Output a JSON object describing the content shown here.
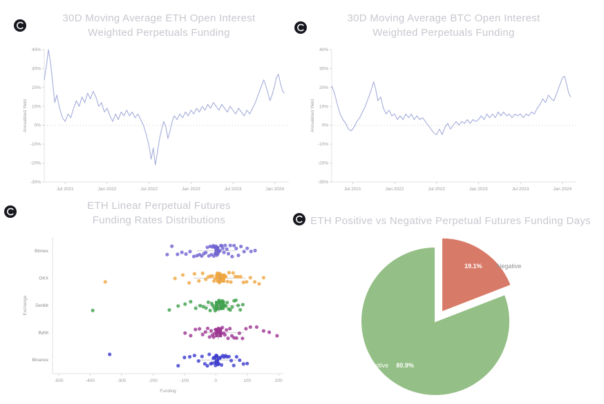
{
  "brand": {
    "logo_icon": "brand-logo-icon",
    "logo_bg": "#17171f",
    "logo_fg": "#ffffff"
  },
  "colors": {
    "title": "#c7c8cf",
    "tick": "#9b9ba1",
    "line_series": "#a5adda",
    "axis": "#e2e2e6",
    "zero_line": "#c8c8c8",
    "pie_positive": "#94bf86",
    "pie_negative": "#d87a68"
  },
  "chart_data": [
    {
      "type": "line",
      "title": "30D Moving Average ETH Open Interest\nWeighted Perpetuals Funding",
      "ylabel": "Annualized Yield",
      "ylim": [
        -30,
        40
      ],
      "xlim": [
        0,
        35
      ],
      "grid": false,
      "zero_line": true,
      "line_color": "#a5adda",
      "yticks": [
        {
          "v": 40,
          "label": "40%"
        },
        {
          "v": 30,
          "label": "30%"
        },
        {
          "v": 20,
          "label": "20%"
        },
        {
          "v": 10,
          "label": "10%"
        },
        {
          "v": 0,
          "label": "0%"
        },
        {
          "v": -10,
          "label": "-10%"
        },
        {
          "v": -20,
          "label": "-20%"
        },
        {
          "v": -30,
          "label": "-30%"
        }
      ],
      "xticks": [
        {
          "t": 3,
          "label": "Jul 2021"
        },
        {
          "t": 9,
          "label": "Jan 2022"
        },
        {
          "t": 15,
          "label": "Jul 2022"
        },
        {
          "t": 21,
          "label": "Jan 2023"
        },
        {
          "t": 27,
          "label": "Jul 2023"
        },
        {
          "t": 33,
          "label": "Jan 2024"
        }
      ],
      "points": [
        [
          0,
          24
        ],
        [
          0.3,
          31
        ],
        [
          0.6,
          40
        ],
        [
          0.9,
          33
        ],
        [
          1.2,
          23
        ],
        [
          1.5,
          12
        ],
        [
          1.8,
          16
        ],
        [
          2.2,
          9
        ],
        [
          2.6,
          4
        ],
        [
          3,
          2
        ],
        [
          3.4,
          6
        ],
        [
          3.8,
          4
        ],
        [
          4.2,
          9
        ],
        [
          4.6,
          13
        ],
        [
          5,
          10
        ],
        [
          5.4,
          15
        ],
        [
          5.8,
          12
        ],
        [
          6.2,
          17
        ],
        [
          6.6,
          14
        ],
        [
          7,
          18
        ],
        [
          7.4,
          15
        ],
        [
          7.8,
          10
        ],
        [
          8.2,
          12
        ],
        [
          8.6,
          7
        ],
        [
          9,
          9
        ],
        [
          9.4,
          5
        ],
        [
          9.8,
          2
        ],
        [
          10.2,
          6
        ],
        [
          10.6,
          3
        ],
        [
          11,
          7
        ],
        [
          11.4,
          5
        ],
        [
          11.8,
          8
        ],
        [
          12.2,
          5
        ],
        [
          12.6,
          7
        ],
        [
          13,
          4
        ],
        [
          13.4,
          6
        ],
        [
          13.8,
          3
        ],
        [
          14.2,
          0
        ],
        [
          14.6,
          -5
        ],
        [
          15,
          -11
        ],
        [
          15.3,
          -18
        ],
        [
          15.6,
          -12
        ],
        [
          15.9,
          -21
        ],
        [
          16.2,
          -14
        ],
        [
          16.5,
          -7
        ],
        [
          16.8,
          -2
        ],
        [
          17.1,
          2
        ],
        [
          17.4,
          -1
        ],
        [
          17.7,
          -7
        ],
        [
          18,
          -3
        ],
        [
          18.3,
          2
        ],
        [
          18.6,
          5
        ],
        [
          19,
          3
        ],
        [
          19.4,
          6
        ],
        [
          19.8,
          4
        ],
        [
          20.2,
          7
        ],
        [
          20.6,
          5
        ],
        [
          21,
          8
        ],
        [
          21.4,
          6
        ],
        [
          21.8,
          9
        ],
        [
          22.2,
          7
        ],
        [
          22.6,
          10
        ],
        [
          23,
          8
        ],
        [
          23.4,
          11
        ],
        [
          23.8,
          9
        ],
        [
          24.2,
          12
        ],
        [
          24.6,
          10
        ],
        [
          25,
          8
        ],
        [
          25.4,
          11
        ],
        [
          25.8,
          9
        ],
        [
          26.2,
          7
        ],
        [
          26.6,
          10
        ],
        [
          27,
          8
        ],
        [
          27.4,
          6
        ],
        [
          27.8,
          9
        ],
        [
          28.2,
          7
        ],
        [
          28.6,
          5
        ],
        [
          29,
          8
        ],
        [
          29.4,
          6
        ],
        [
          29.8,
          9
        ],
        [
          30.2,
          12
        ],
        [
          30.6,
          16
        ],
        [
          31,
          20
        ],
        [
          31.4,
          24
        ],
        [
          31.7,
          21
        ],
        [
          32,
          17
        ],
        [
          32.3,
          13
        ],
        [
          32.6,
          16
        ],
        [
          32.9,
          20
        ],
        [
          33.2,
          25
        ],
        [
          33.5,
          27
        ],
        [
          33.8,
          22
        ],
        [
          34.1,
          18
        ],
        [
          34.4,
          17
        ]
      ]
    },
    {
      "type": "line",
      "title": "30D Moving Average BTC Open Interest\nWeighted Perpetuals Funding",
      "ylabel": "Annualized Yield",
      "ylim": [
        -30,
        40
      ],
      "xlim": [
        0,
        35
      ],
      "grid": false,
      "zero_line": true,
      "line_color": "#a5adda",
      "yticks": [
        {
          "v": 40,
          "label": "40%"
        },
        {
          "v": 30,
          "label": "30%"
        },
        {
          "v": 20,
          "label": "20%"
        },
        {
          "v": 10,
          "label": "10%"
        },
        {
          "v": 0,
          "label": "0%"
        },
        {
          "v": -10,
          "label": "-10%"
        },
        {
          "v": -20,
          "label": "-20%"
        },
        {
          "v": -30,
          "label": "-30%"
        }
      ],
      "xticks": [
        {
          "t": 3,
          "label": "Jul 2021"
        },
        {
          "t": 9,
          "label": "Jan 2022"
        },
        {
          "t": 15,
          "label": "Jul 2022"
        },
        {
          "t": 21,
          "label": "Jan 2023"
        },
        {
          "t": 27,
          "label": "Jul 2023"
        },
        {
          "t": 33,
          "label": "Jan 2024"
        }
      ],
      "points": [
        [
          0,
          21
        ],
        [
          0.4,
          17
        ],
        [
          0.8,
          11
        ],
        [
          1.2,
          6
        ],
        [
          1.6,
          3
        ],
        [
          2,
          1
        ],
        [
          2.4,
          -2
        ],
        [
          2.8,
          -3
        ],
        [
          3.2,
          -1
        ],
        [
          3.6,
          2
        ],
        [
          4,
          4
        ],
        [
          4.4,
          7
        ],
        [
          4.8,
          10
        ],
        [
          5.2,
          14
        ],
        [
          5.6,
          18
        ],
        [
          6,
          23
        ],
        [
          6.3,
          19
        ],
        [
          6.6,
          13
        ],
        [
          7,
          15
        ],
        [
          7.4,
          9
        ],
        [
          7.8,
          6
        ],
        [
          8.2,
          8
        ],
        [
          8.6,
          5
        ],
        [
          9,
          6
        ],
        [
          9.4,
          3
        ],
        [
          9.8,
          5
        ],
        [
          10.2,
          3
        ],
        [
          10.6,
          6
        ],
        [
          11,
          4
        ],
        [
          11.4,
          6
        ],
        [
          11.8,
          3
        ],
        [
          12.2,
          5
        ],
        [
          12.6,
          3
        ],
        [
          13,
          4
        ],
        [
          13.4,
          2
        ],
        [
          13.8,
          0
        ],
        [
          14.2,
          -2
        ],
        [
          14.6,
          -4
        ],
        [
          15,
          -5
        ],
        [
          15.4,
          -2
        ],
        [
          15.8,
          -5
        ],
        [
          16.2,
          -1
        ],
        [
          16.6,
          1
        ],
        [
          17,
          -2
        ],
        [
          17.4,
          0
        ],
        [
          17.8,
          2
        ],
        [
          18.2,
          0
        ],
        [
          18.6,
          2
        ],
        [
          19,
          1
        ],
        [
          19.4,
          3
        ],
        [
          19.8,
          1
        ],
        [
          20.2,
          3
        ],
        [
          20.6,
          2
        ],
        [
          21,
          3
        ],
        [
          21.4,
          5
        ],
        [
          21.8,
          3
        ],
        [
          22.2,
          6
        ],
        [
          22.6,
          4
        ],
        [
          23,
          6
        ],
        [
          23.4,
          4
        ],
        [
          23.8,
          7
        ],
        [
          24.2,
          5
        ],
        [
          24.6,
          7
        ],
        [
          25,
          5
        ],
        [
          25.4,
          6
        ],
        [
          25.8,
          4
        ],
        [
          26.2,
          6
        ],
        [
          26.6,
          5
        ],
        [
          27,
          6
        ],
        [
          27.4,
          4
        ],
        [
          27.8,
          6
        ],
        [
          28.2,
          5
        ],
        [
          28.6,
          7
        ],
        [
          29,
          6
        ],
        [
          29.4,
          9
        ],
        [
          29.8,
          11
        ],
        [
          30.2,
          14
        ],
        [
          30.6,
          12
        ],
        [
          31,
          16
        ],
        [
          31.4,
          14
        ],
        [
          31.8,
          13
        ],
        [
          32.2,
          17
        ],
        [
          32.6,
          21
        ],
        [
          33,
          25
        ],
        [
          33.3,
          26
        ],
        [
          33.6,
          22
        ],
        [
          33.9,
          17
        ],
        [
          34.2,
          15
        ]
      ]
    },
    {
      "type": "strip",
      "title": "ETH Linear Perpetual Futures\nFunding Rates Distributions",
      "xlabel": "Funding",
      "ylabel": "Exchange",
      "xlim": [
        -520,
        215
      ],
      "xticks": [
        -500,
        -400,
        -300,
        -200,
        -100,
        0,
        100,
        200
      ],
      "exchanges": [
        {
          "name": "Bitmex",
          "color": "#6e62d1",
          "box": {
            "q1": -4,
            "med": 3,
            "q3": 11,
            "lo": -60,
            "hi": 62
          },
          "points": [
            -155,
            -140,
            -122,
            -108,
            -95,
            -82,
            -70,
            -60,
            -52,
            -45,
            -38,
            -32,
            -27,
            -22,
            -18,
            -14,
            -11,
            -8,
            -6,
            -4,
            -2,
            0,
            2,
            4,
            6,
            8,
            10,
            13,
            16,
            19,
            22,
            26,
            30,
            35,
            40,
            46,
            52,
            58,
            65,
            72,
            80,
            90,
            100,
            112,
            125
          ]
        },
        {
          "name": "OKX",
          "color": "#f0a43c",
          "box": {
            "q1": 1,
            "med": 12,
            "q3": 30,
            "lo": -70,
            "hi": 95
          },
          "points": [
            -352,
            -130,
            -105,
            -85,
            -68,
            -54,
            -42,
            -32,
            -24,
            -17,
            -11,
            -6,
            -2,
            2,
            5,
            8,
            11,
            14,
            17,
            20,
            24,
            28,
            32,
            37,
            42,
            48,
            55,
            62,
            70,
            79,
            88,
            98,
            110,
            124,
            138,
            152
          ]
        },
        {
          "name": "Deribit",
          "color": "#3da04b",
          "box": {
            "q1": -3,
            "med": 10,
            "q3": 28,
            "lo": -64,
            "hi": 86
          },
          "points": [
            -392,
            -148,
            -120,
            -98,
            -80,
            -64,
            -50,
            -40,
            -31,
            -24,
            -18,
            -13,
            -9,
            -5,
            -2,
            1,
            4,
            7,
            10,
            13,
            16,
            20,
            24,
            28,
            32,
            36,
            41,
            46,
            52,
            58,
            64,
            71,
            78,
            86
          ]
        },
        {
          "name": "Bybit",
          "color": "#9c3392",
          "box": {
            "q1": -2,
            "med": 8,
            "q3": 20,
            "lo": -52,
            "hi": 90
          },
          "points": [
            -98,
            -80,
            -65,
            -52,
            -42,
            -33,
            -26,
            -20,
            -15,
            -11,
            -7,
            -4,
            -1,
            2,
            5,
            8,
            11,
            14,
            17,
            21,
            25,
            29,
            34,
            39,
            45,
            51,
            58,
            66,
            75,
            85,
            96,
            110,
            130,
            152,
            170,
            195
          ]
        },
        {
          "name": "Binance",
          "color": "#3a3ad0",
          "box": {
            "q1": -3,
            "med": 2,
            "q3": 9,
            "lo": -55,
            "hi": 66
          },
          "points": [
            -338,
            -120,
            -100,
            -83,
            -68,
            -55,
            -44,
            -35,
            -27,
            -21,
            -16,
            -12,
            -8,
            -5,
            -3,
            -1,
            1,
            3,
            5,
            7,
            9,
            12,
            15,
            18,
            22,
            26,
            31,
            36,
            42,
            49,
            57,
            66,
            76,
            88,
            100
          ]
        }
      ]
    },
    {
      "type": "pie",
      "title": "ETH Positive vs Negative Perpetual Futures Funding Days",
      "start_angle_deg": 0,
      "slices": [
        {
          "label": "Negative",
          "pct": 19.1,
          "pct_label": "19.1%",
          "color": "#d87a68",
          "exploded": true,
          "label_side": "right",
          "label_color": "#8f8f94"
        },
        {
          "label": "Positive",
          "pct": 80.9,
          "pct_label": "80.9%",
          "color": "#94bf86",
          "exploded": false,
          "label_side": "left",
          "label_color": "#ffffff"
        }
      ]
    }
  ]
}
